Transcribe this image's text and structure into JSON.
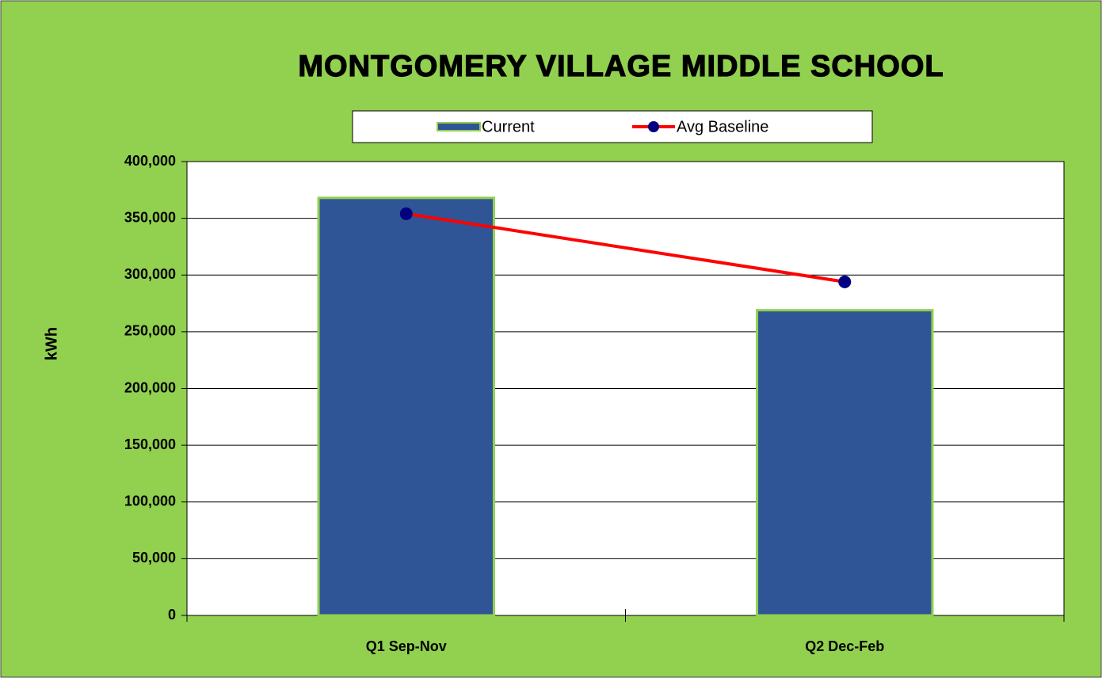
{
  "chart_data": {
    "type": "bar",
    "title": "MONTGOMERY VILLAGE MIDDLE SCHOOL",
    "y_label": "kWh",
    "categories": [
      "Q1 Sep-Nov",
      "Q2 Dec-Feb"
    ],
    "series": [
      {
        "name": "Current",
        "type": "bar",
        "color": "#2f5597",
        "values": [
          368000,
          269000
        ]
      },
      {
        "name": "Avg Baseline",
        "type": "line",
        "color": "#ff0000",
        "marker_color": "#000080",
        "values": [
          354000,
          294000
        ]
      }
    ],
    "ylim": [
      0,
      400000
    ],
    "yticks": [
      0,
      {
        "value": 50000,
        "label": "50,000"
      },
      {
        "value": 100000,
        "label": "100,000"
      },
      {
        "value": 150000,
        "label": "150,000"
      },
      {
        "value": 200000,
        "label": "200,000"
      },
      {
        "value": 250000,
        "label": "250,000"
      },
      {
        "value": 300000,
        "label": "300,000"
      },
      {
        "value": 350000,
        "label": "350,000"
      },
      {
        "value": 400000,
        "label": "400,000"
      }
    ],
    "grid": true,
    "legend": "top"
  }
}
